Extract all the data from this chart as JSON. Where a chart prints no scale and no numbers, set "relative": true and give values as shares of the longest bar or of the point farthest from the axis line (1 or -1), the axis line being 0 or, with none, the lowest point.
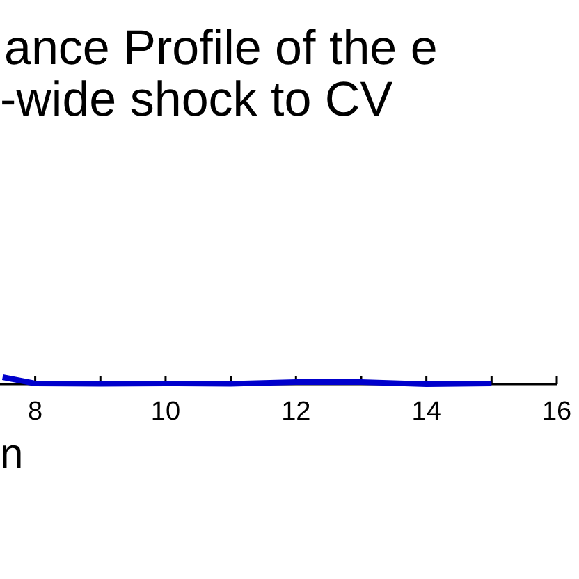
{
  "chart_data": {
    "type": "line",
    "title": "ance Profile of the e\n-wide shock to CV",
    "xlabel": "n",
    "relative": true,
    "x": [
      7.5,
      8,
      9,
      10,
      11,
      12,
      13,
      14,
      15
    ],
    "series": [
      {
        "color": "#0000cc",
        "values": [
          1,
          0.1,
          0.05,
          0.1,
          0.05,
          0.3,
          0.3,
          0,
          0.1
        ]
      }
    ],
    "xlim": [
      7.46,
      16
    ],
    "xticks": [
      8,
      {
        "value": 9,
        "label": null
      },
      10,
      {
        "value": 11,
        "label": null
      },
      12,
      {
        "value": 13,
        "label": null
      },
      14,
      {
        "value": 15,
        "label": null
      },
      16
    ],
    "marker": "none",
    "line_style": "solid"
  }
}
